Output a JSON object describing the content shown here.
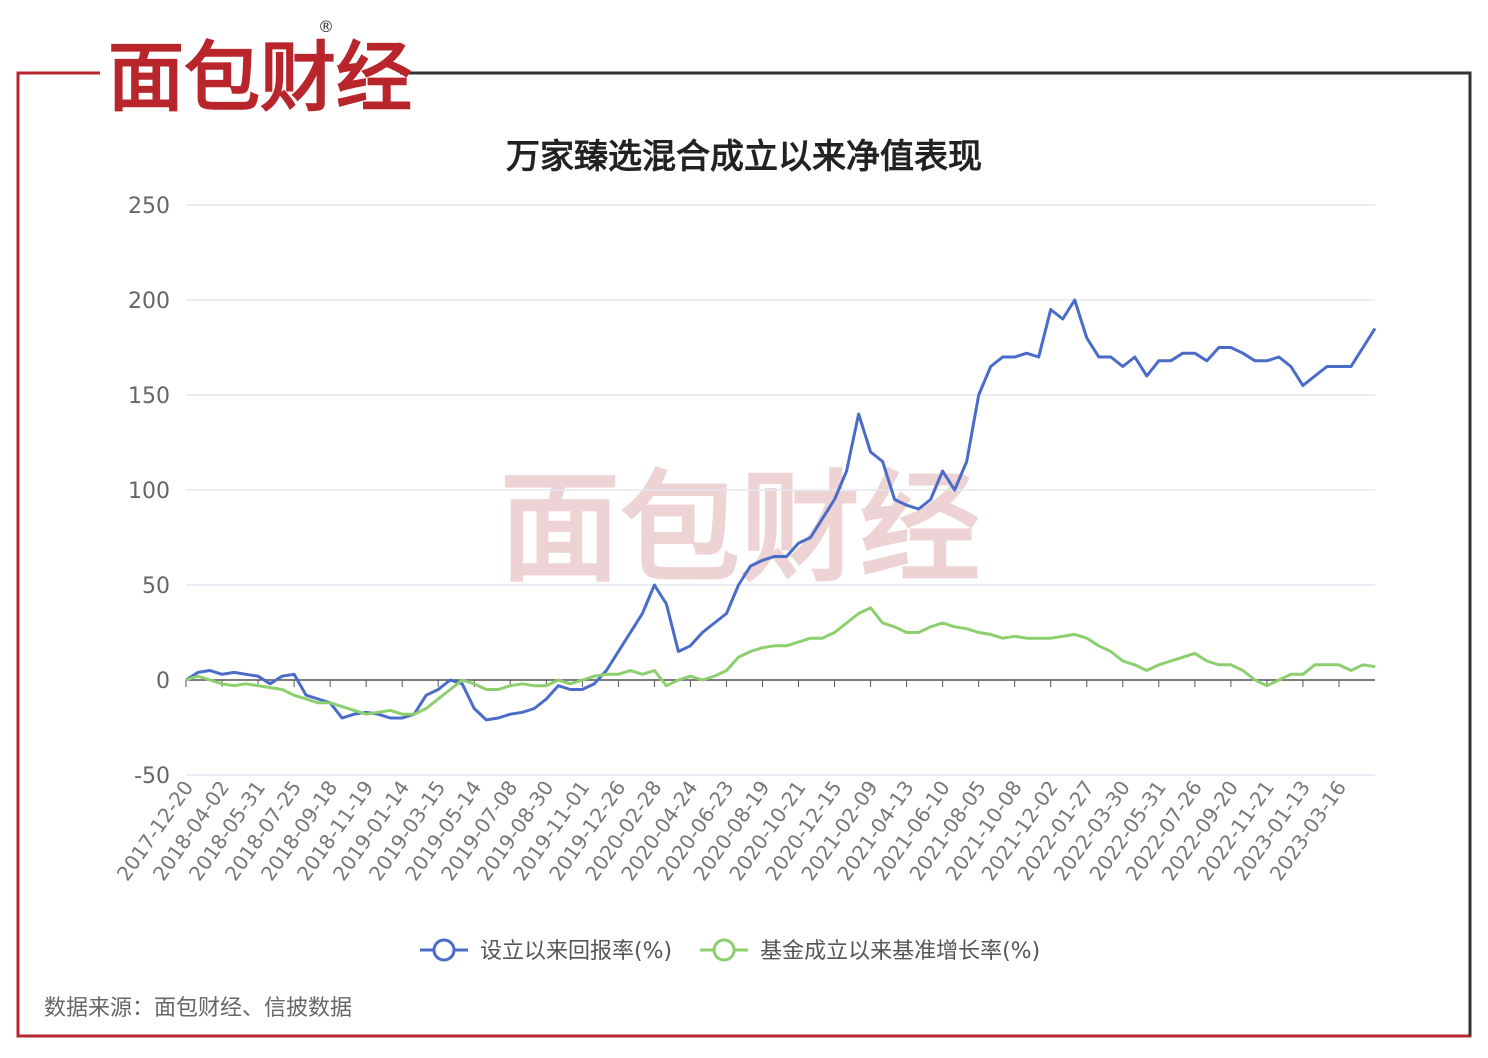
{
  "logo": {
    "text": "面包财经",
    "mark": "®"
  },
  "watermark": "面包财经",
  "source": "数据来源：面包财经、信披数据",
  "chart_data": {
    "type": "line",
    "title": "万家臻选混合成立以来净值表现",
    "categories": [
      "2017-12-20",
      null,
      null,
      "2018-04-02",
      null,
      null,
      "2018-05-31",
      null,
      null,
      "2018-07-25",
      null,
      null,
      "2018-09-18",
      null,
      null,
      "2018-11-19",
      null,
      null,
      "2019-01-14",
      null,
      null,
      "2019-03-15",
      null,
      null,
      "2019-05-14",
      null,
      null,
      "2019-07-08",
      null,
      null,
      "2019-08-30",
      null,
      null,
      "2019-11-01",
      null,
      null,
      "2019-12-26",
      null,
      null,
      "2020-02-28",
      null,
      null,
      "2020-04-24",
      null,
      null,
      "2020-06-23",
      null,
      null,
      "2020-08-19",
      null,
      null,
      "2020-10-21",
      null,
      null,
      "2020-12-15",
      null,
      null,
      "2021-02-09",
      null,
      null,
      "2021-04-13",
      null,
      null,
      "2021-06-10",
      null,
      null,
      "2021-08-05",
      null,
      null,
      "2021-10-08",
      null,
      null,
      "2021-12-02",
      null,
      null,
      "2022-01-27",
      null,
      null,
      "2022-03-30",
      null,
      null,
      "2022-05-31",
      null,
      null,
      "2022-07-26",
      null,
      null,
      "2022-09-20",
      null,
      null,
      "2022-11-21",
      null,
      null,
      "2023-01-13",
      null,
      null,
      "2023-03-16",
      null,
      null,
      null
    ],
    "series": [
      {
        "name": "设立以来回报率(%)",
        "color": "#4a6cc8",
        "values": [
          0,
          4,
          5,
          3,
          4,
          3,
          2,
          -2,
          2,
          3,
          -8,
          -10,
          -12,
          -20,
          -18,
          -17,
          -18,
          -20,
          -20,
          -18,
          -8,
          -5,
          0,
          -2,
          -15,
          -21,
          -20,
          -18,
          -17,
          -15,
          -10,
          -3,
          -5,
          -5,
          -2,
          5,
          15,
          25,
          35,
          50,
          40,
          15,
          18,
          25,
          30,
          35,
          50,
          60,
          63,
          65,
          65,
          72,
          75,
          85,
          95,
          110,
          140,
          120,
          115,
          95,
          92,
          90,
          95,
          110,
          100,
          115,
          150,
          165,
          170,
          170,
          172,
          170,
          195,
          190,
          200,
          180,
          170,
          170,
          165,
          170,
          160,
          168,
          168,
          172,
          172,
          168,
          175,
          175,
          172,
          168,
          168,
          170,
          165,
          155,
          160,
          165,
          165,
          165,
          175,
          185
        ]
      },
      {
        "name": "基金成立以来基准增长率(%)",
        "color": "#8ccf6e",
        "values": [
          0,
          2,
          0,
          -2,
          -3,
          -2,
          -3,
          -4,
          -5,
          -8,
          -10,
          -12,
          -12,
          -14,
          -16,
          -18,
          -17,
          -16,
          -18,
          -18,
          -15,
          -10,
          -5,
          0,
          -2,
          -5,
          -5,
          -3,
          -2,
          -3,
          -3,
          0,
          -2,
          0,
          2,
          3,
          3,
          5,
          3,
          5,
          -3,
          0,
          2,
          0,
          2,
          5,
          12,
          15,
          17,
          18,
          18,
          20,
          22,
          22,
          25,
          30,
          35,
          38,
          30,
          28,
          25,
          25,
          28,
          30,
          28,
          27,
          25,
          24,
          22,
          23,
          22,
          22,
          22,
          23,
          24,
          22,
          18,
          15,
          10,
          8,
          5,
          8,
          10,
          12,
          14,
          10,
          8,
          8,
          5,
          0,
          -3,
          0,
          3,
          3,
          8,
          8,
          8,
          5,
          8,
          7
        ]
      }
    ],
    "ylim": [
      -50,
      250
    ],
    "yticks": [
      -50,
      0,
      50,
      100,
      150,
      200,
      250
    ],
    "grid": true,
    "legend": "bottom"
  }
}
